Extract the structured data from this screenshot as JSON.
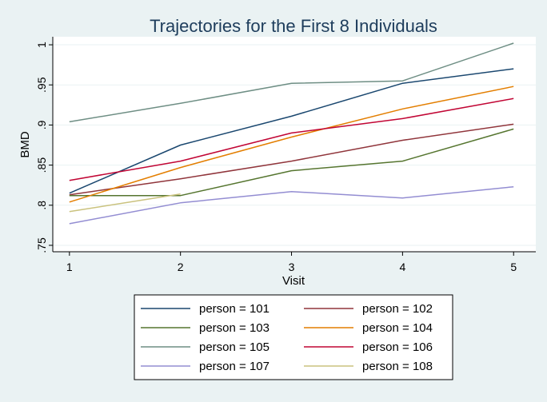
{
  "chart_data": {
    "type": "line",
    "title": "Trajectories for the First 8 Individuals",
    "xlabel": "Visit",
    "ylabel": "BMD",
    "x": [
      1,
      2,
      3,
      4,
      5
    ],
    "xticks": [
      "1",
      "2",
      "3",
      "4",
      "5"
    ],
    "yticks": [
      ".75",
      ".8",
      ".85",
      ".9",
      ".95",
      "1"
    ],
    "xlim": [
      0.85,
      5.2
    ],
    "ylim": [
      0.742,
      1.01
    ],
    "grid": true,
    "legend_position": "bottom",
    "series": [
      {
        "name": "person = 101",
        "color": "#1A476F",
        "values": [
          0.815,
          0.875,
          0.911,
          0.952,
          0.97
        ]
      },
      {
        "name": "person = 102",
        "color": "#90353B",
        "values": [
          0.813,
          0.833,
          0.855,
          0.881,
          0.901
        ]
      },
      {
        "name": "person = 103",
        "color": "#55752F",
        "values": [
          0.812,
          0.812,
          0.843,
          0.855,
          0.895
        ]
      },
      {
        "name": "person = 104",
        "color": "#E37E00",
        "values": [
          0.804,
          0.847,
          0.885,
          0.92,
          0.948
        ]
      },
      {
        "name": "person = 105",
        "color": "#6E8E84",
        "values": [
          0.904,
          0.927,
          0.952,
          0.955,
          1.002
        ]
      },
      {
        "name": "person = 106",
        "color": "#C10534",
        "values": [
          0.831,
          0.855,
          0.89,
          0.908,
          0.933
        ]
      },
      {
        "name": "person = 107",
        "color": "#938DD2",
        "values": [
          0.777,
          0.803,
          0.817,
          0.809,
          0.823
        ]
      },
      {
        "name": "person = 108",
        "color": "#CAC27E",
        "values": [
          0.792,
          0.814,
          null,
          null,
          null
        ]
      }
    ]
  }
}
